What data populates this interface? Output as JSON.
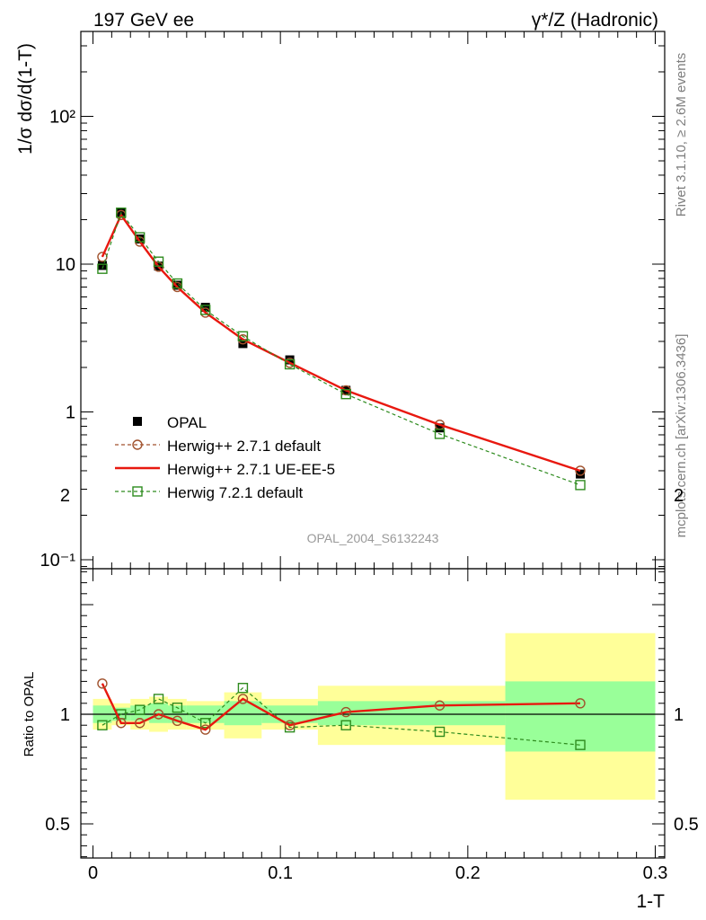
{
  "header": {
    "left": "197 GeV ee",
    "right": "γ*/Z (Hadronic)"
  },
  "side_labels": {
    "rivet": "Rivet 3.1.10, ≥ 2.6M events",
    "mcplots": "mcplots.cern.ch [arXiv:1306.3436]"
  },
  "watermark": "OPAL_2004_S6132243",
  "chart_data": [
    {
      "type": "scatter",
      "title": "",
      "xlabel": "1-T",
      "ylabel": "1/σ dσ/d(1-T)",
      "xlim": [
        0,
        0.3
      ],
      "ylim": [
        0.08,
        400
      ],
      "yscale": "log",
      "y_ticks": [
        {
          "value": 0.1,
          "label": "10⁻¹"
        },
        {
          "value": 1,
          "label": "1"
        },
        {
          "value": 10,
          "label": "10"
        },
        {
          "value": 100,
          "label": "10²"
        }
      ],
      "x": [
        0.005,
        0.015,
        0.025,
        0.035,
        0.045,
        0.06,
        0.08,
        0.105,
        0.135,
        0.185,
        0.26
      ],
      "series": [
        {
          "name": "OPAL",
          "style": "data",
          "color": "#000000",
          "values": [
            9.8,
            22.5,
            14.8,
            9.7,
            7.2,
            5.1,
            2.9,
            2.25,
            1.4,
            0.78,
            0.38
          ]
        },
        {
          "name": "Herwig++ 2.7.1 default",
          "style": "circle-dashed",
          "color": "#a0522d",
          "values": [
            11.2,
            21.5,
            14.2,
            9.6,
            7.0,
            4.7,
            3.1,
            2.15,
            1.4,
            0.82,
            0.4
          ]
        },
        {
          "name": "Herwig++ 2.7.1 UE-EE-5",
          "style": "solid",
          "color": "#e8180f",
          "values": [
            11.2,
            21.5,
            14.2,
            9.6,
            7.0,
            4.7,
            3.1,
            2.15,
            1.4,
            0.82,
            0.4
          ]
        },
        {
          "name": "Herwig 7.2.1 default",
          "style": "square-dashed",
          "color": "#2e8b1e",
          "values": [
            9.3,
            22.3,
            15.2,
            10.4,
            7.4,
            4.9,
            3.25,
            2.1,
            1.32,
            0.71,
            0.32
          ]
        }
      ],
      "legend_position": "center-left"
    },
    {
      "type": "line",
      "title": "",
      "xlabel": "1-T",
      "ylabel": "Ratio to OPAL",
      "xlim": [
        0,
        0.3
      ],
      "ylim": [
        0.3,
        2.3
      ],
      "y_ticks": [
        0.5,
        1,
        2
      ],
      "x_ticks": [
        0,
        0.1,
        0.2,
        0.3
      ],
      "x": [
        0.005,
        0.015,
        0.025,
        0.035,
        0.045,
        0.06,
        0.08,
        0.105,
        0.135,
        0.185,
        0.26
      ],
      "series": [
        {
          "name": "Herwig++ 2.7.1 default",
          "color": "#a0522d",
          "values": [
            1.14,
            0.96,
            0.96,
            1.0,
            0.97,
            0.93,
            1.07,
            0.95,
            1.01,
            1.04,
            1.05
          ]
        },
        {
          "name": "Herwig++ 2.7.1 UE-EE-5",
          "color": "#e8180f",
          "values": [
            1.14,
            0.96,
            0.96,
            1.0,
            0.97,
            0.93,
            1.07,
            0.95,
            1.01,
            1.04,
            1.05
          ]
        },
        {
          "name": "Herwig 7.2.1 default",
          "color": "#2e8b1e",
          "values": [
            0.95,
            1.0,
            1.02,
            1.07,
            1.03,
            0.96,
            1.12,
            0.94,
            0.95,
            0.92,
            0.86
          ]
        }
      ],
      "bands": [
        {
          "x0": 0.0,
          "x1": 0.01,
          "inner": [
            0.96,
            1.04
          ],
          "outer": [
            0.93,
            1.07
          ]
        },
        {
          "x0": 0.01,
          "x1": 0.02,
          "inner": [
            0.97,
            1.03
          ],
          "outer": [
            0.95,
            1.05
          ]
        },
        {
          "x0": 0.02,
          "x1": 0.03,
          "inner": [
            0.97,
            1.04
          ],
          "outer": [
            0.93,
            1.07
          ]
        },
        {
          "x0": 0.03,
          "x1": 0.04,
          "inner": [
            0.96,
            1.05
          ],
          "outer": [
            0.92,
            1.08
          ]
        },
        {
          "x0": 0.04,
          "x1": 0.05,
          "inner": [
            0.96,
            1.04
          ],
          "outer": [
            0.93,
            1.07
          ]
        },
        {
          "x0": 0.05,
          "x1": 0.07,
          "inner": [
            0.96,
            1.04
          ],
          "outer": [
            0.93,
            1.06
          ]
        },
        {
          "x0": 0.07,
          "x1": 0.09,
          "inner": [
            0.95,
            1.06
          ],
          "outer": [
            0.89,
            1.1
          ]
        },
        {
          "x0": 0.09,
          "x1": 0.12,
          "inner": [
            0.96,
            1.04
          ],
          "outer": [
            0.93,
            1.07
          ]
        },
        {
          "x0": 0.12,
          "x1": 0.15,
          "inner": [
            0.95,
            1.06
          ],
          "outer": [
            0.86,
            1.13
          ]
        },
        {
          "x0": 0.15,
          "x1": 0.22,
          "inner": [
            0.95,
            1.06
          ],
          "outer": [
            0.86,
            1.13
          ]
        },
        {
          "x0": 0.22,
          "x1": 0.3,
          "inner": [
            0.83,
            1.15
          ],
          "outer": [
            0.61,
            1.37
          ]
        }
      ],
      "reference_line": 1
    }
  ]
}
